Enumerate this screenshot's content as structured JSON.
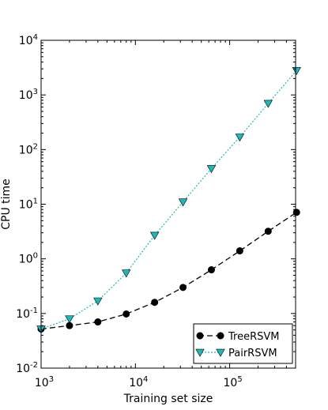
{
  "chart_data": {
    "type": "line",
    "title": "",
    "xlabel": "Training set size",
    "ylabel": "CPU time",
    "xscale": "log",
    "yscale": "log",
    "xlim": [
      1000,
      500000
    ],
    "ylim": [
      0.01,
      10000
    ],
    "grid": false,
    "legend_position": "bottom-right",
    "x_ticks": [
      {
        "value": 1000,
        "base": "10",
        "exp": "3"
      },
      {
        "value": 10000,
        "base": "10",
        "exp": "4"
      },
      {
        "value": 100000,
        "base": "10",
        "exp": "5"
      }
    ],
    "y_ticks": [
      {
        "value": 0.01,
        "base": "10",
        "exp": "-2"
      },
      {
        "value": 0.1,
        "base": "10",
        "exp": "-1"
      },
      {
        "value": 1,
        "base": "10",
        "exp": "0"
      },
      {
        "value": 10,
        "base": "10",
        "exp": "1"
      },
      {
        "value": 100,
        "base": "10",
        "exp": "2"
      },
      {
        "value": 1000,
        "base": "10",
        "exp": "3"
      },
      {
        "value": 10000,
        "base": "10",
        "exp": "4"
      }
    ],
    "series": [
      {
        "name": "TreeRSVM",
        "color": "#000000",
        "line_style": "dashed",
        "marker": "circle",
        "x": [
          1000,
          2000,
          4000,
          8000,
          16000,
          32000,
          64000,
          128000,
          256000,
          512000
        ],
        "y": [
          0.052,
          0.06,
          0.07,
          0.098,
          0.16,
          0.3,
          0.63,
          1.4,
          3.2,
          7.1
        ]
      },
      {
        "name": "PairRSVM",
        "color": "#1fb8b8",
        "line_style": "dotted",
        "marker": "triangle-down",
        "x": [
          1000,
          2000,
          4000,
          8000,
          16000,
          32000,
          64000,
          128000,
          256000,
          512000
        ],
        "y": [
          0.052,
          0.08,
          0.17,
          0.55,
          2.7,
          11,
          45,
          170,
          700,
          2800
        ]
      }
    ]
  }
}
